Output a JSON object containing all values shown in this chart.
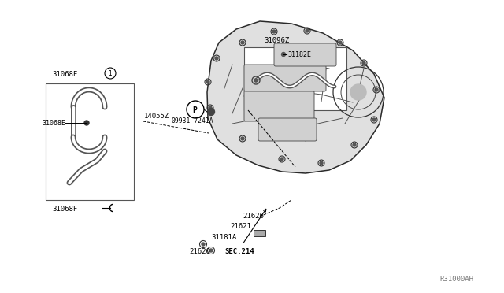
{
  "bg_color": "#ffffff",
  "line_color": "#000000",
  "mid_gray": "#888888",
  "dark_gray": "#444444",
  "diagram_ref": "R31000AH",
  "labels": {
    "top_box_ref": "31096Z",
    "top_box_part": "31182E",
    "left_box_top": "31068F",
    "left_box_mid": "31068E",
    "left_box_bot": "31068F",
    "arrow_label1": "14055Z",
    "circle_label": "09931-7241A",
    "part1": "21626",
    "part2": "21621",
    "part3": "31181A",
    "part4": "21626",
    "sec_label": "SEC.214"
  },
  "figsize": [
    6.4,
    3.72
  ],
  "dpi": 100
}
